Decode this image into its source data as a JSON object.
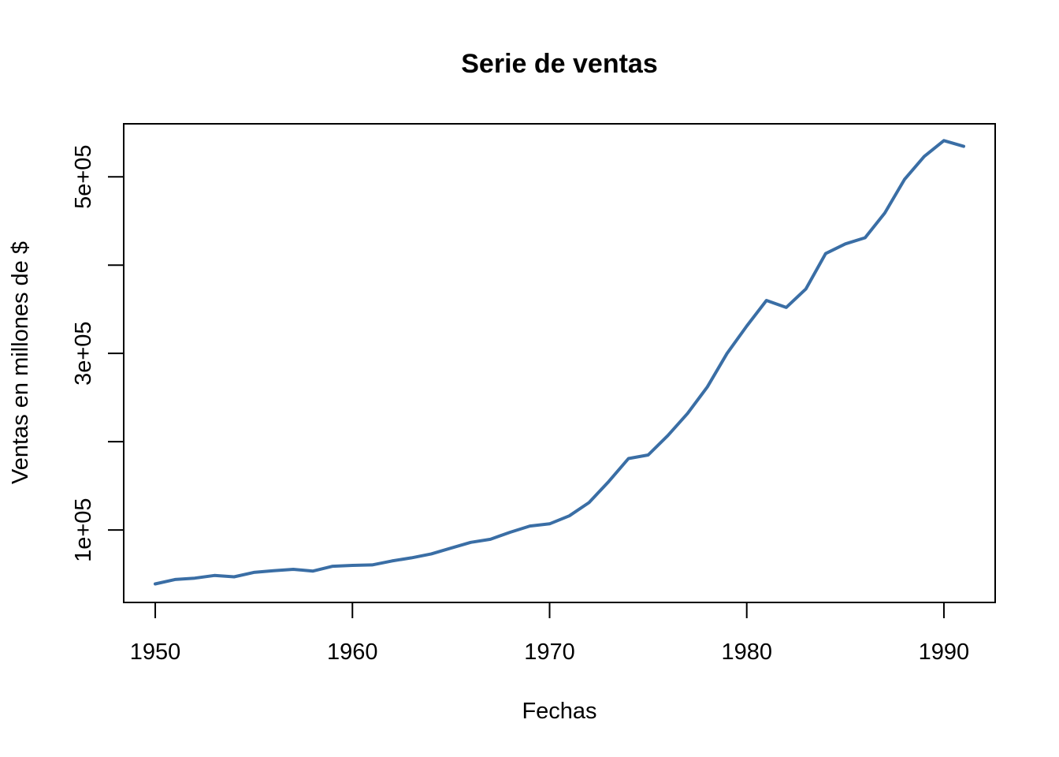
{
  "chart_data": {
    "type": "line",
    "title": "Serie de ventas",
    "xlabel": "Fechas",
    "ylabel": "Ventas en millones de $",
    "x_ticks": [
      1950,
      1960,
      1970,
      1980,
      1990
    ],
    "x_tick_labels": [
      "1950",
      "1960",
      "1970",
      "1980",
      "1990"
    ],
    "y_ticks": [
      100000,
      200000,
      300000,
      400000,
      500000
    ],
    "y_tick_labels": [
      "1e+05",
      "",
      "3e+05",
      "",
      "5e+05"
    ],
    "xlim": [
      1948.4,
      1992.6
    ],
    "ylim": [
      18000,
      560000
    ],
    "grid": false,
    "line_color": "#3a6ea5",
    "series": [
      {
        "x": [
          1950,
          1951,
          1952,
          1953,
          1954,
          1955,
          1956,
          1957,
          1958,
          1959,
          1960,
          1961,
          1962,
          1963,
          1964,
          1965,
          1966,
          1967,
          1968,
          1969,
          1970,
          1971,
          1972,
          1973,
          1974,
          1975,
          1976,
          1977,
          1978,
          1979,
          1980,
          1981,
          1982,
          1983,
          1984,
          1985,
          1986,
          1987,
          1988,
          1989,
          1990,
          1991
        ],
        "values": [
          39000,
          44000,
          45500,
          48500,
          47000,
          52000,
          54000,
          55500,
          53500,
          59000,
          60000,
          60500,
          65000,
          68500,
          73000,
          79500,
          86000,
          89500,
          97500,
          104500,
          107000,
          116000,
          131000,
          155000,
          181000,
          185000,
          207000,
          232000,
          262000,
          300000,
          331000,
          360000,
          352000,
          373000,
          413000,
          424000,
          431000,
          459000,
          497000,
          523000,
          541000,
          534500
        ]
      }
    ]
  }
}
